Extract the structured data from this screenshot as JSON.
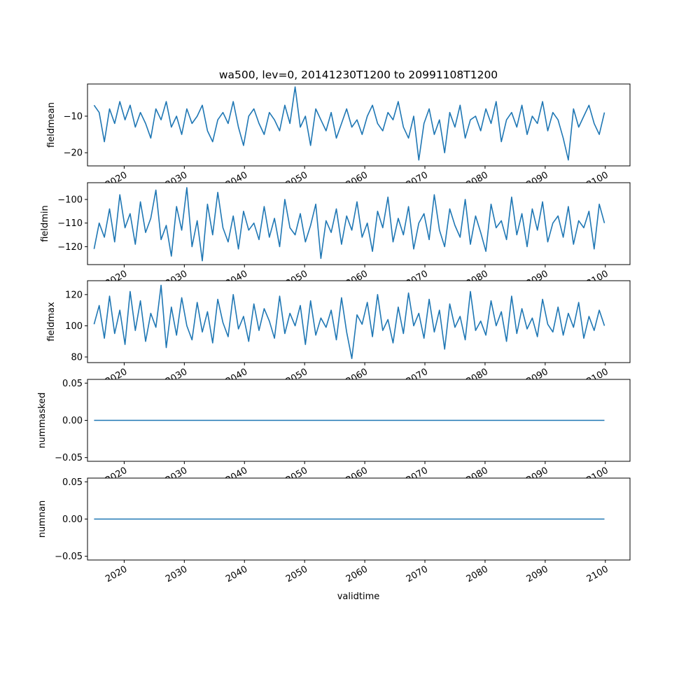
{
  "chart_data": {
    "type": "line",
    "title": "wa500, lev=0, 20141230T1200 to 20991108T1200",
    "xlabel": "validtime",
    "x_range": [
      2013.9,
      2104.1
    ],
    "x_ticks": [
      2020,
      2030,
      2040,
      2050,
      2060,
      2070,
      2080,
      2090,
      2100
    ],
    "x_tick_labels": [
      "2020",
      "2030",
      "2040",
      "2050",
      "2060",
      "2070",
      "2080",
      "2090",
      "2100"
    ],
    "time_start": 2014.99,
    "time_end": 2099.85,
    "line_color": "#1f77b4",
    "grid": false,
    "panels": [
      {
        "ylabel": "fieldmean",
        "ylim": [
          -23.6,
          -1.2
        ],
        "yticks": [
          -10,
          -20
        ],
        "ytick_labels": [
          "−10",
          "−20"
        ],
        "values": [
          -7,
          -9,
          -17,
          -8,
          -12,
          -6,
          -11,
          -7,
          -13,
          -9,
          -12,
          -16,
          -8,
          -11,
          -6,
          -13,
          -10,
          -15,
          -8,
          -12,
          -10,
          -7,
          -14,
          -17,
          -11,
          -9,
          -12,
          -6,
          -13,
          -18,
          -10,
          -8,
          -12,
          -15,
          -9,
          -11,
          -14,
          -7,
          -12,
          -2,
          -13,
          -10,
          -18,
          -8,
          -11,
          -14,
          -9,
          -16,
          -12,
          -8,
          -13,
          -11,
          -15,
          -10,
          -7,
          -12,
          -14,
          -9,
          -11,
          -6,
          -13,
          -16,
          -10,
          -22,
          -12,
          -8,
          -15,
          -11,
          -20,
          -9,
          -13,
          -7,
          -16,
          -11,
          -10,
          -14,
          -8,
          -12,
          -6,
          -17,
          -11,
          -9,
          -13,
          -7,
          -15,
          -10,
          -12,
          -6,
          -14,
          -9,
          -11,
          -16,
          -22,
          -8,
          -13,
          -10,
          -7,
          -12,
          -15,
          -9
        ]
      },
      {
        "ylabel": "fieldmin",
        "ylim": [
          -127.6,
          -92.9
        ],
        "yticks": [
          -100,
          -110,
          -120
        ],
        "ytick_labels": [
          "−100",
          "−110",
          "−120"
        ],
        "values": [
          -121,
          -110,
          -116,
          -104,
          -118,
          -98,
          -112,
          -106,
          -119,
          -101,
          -114,
          -108,
          -96,
          -117,
          -111,
          -124,
          -103,
          -113,
          -95,
          -120,
          -109,
          -126,
          -102,
          -115,
          -97,
          -112,
          -118,
          -107,
          -121,
          -105,
          -113,
          -110,
          -117,
          -103,
          -116,
          -108,
          -120,
          -100,
          -112,
          -115,
          -106,
          -118,
          -111,
          -102,
          -125,
          -109,
          -114,
          -104,
          -119,
          -107,
          -113,
          -101,
          -116,
          -110,
          -122,
          -105,
          -112,
          -99,
          -118,
          -108,
          -115,
          -103,
          -121,
          -110,
          -106,
          -117,
          -98,
          -113,
          -120,
          -104,
          -111,
          -116,
          -100,
          -119,
          -107,
          -114,
          -122,
          -102,
          -112,
          -109,
          -117,
          -99,
          -115,
          -106,
          -120,
          -104,
          -113,
          -101,
          -118,
          -110,
          -107,
          -116,
          -103,
          -119,
          -109,
          -112,
          -105,
          -121,
          -102,
          -110
        ]
      },
      {
        "ylabel": "fieldmax",
        "ylim": [
          76.4,
          128.9
        ],
        "yticks": [
          120,
          100,
          80
        ],
        "ytick_labels": [
          "120",
          "100",
          "80"
        ],
        "values": [
          101,
          113,
          92,
          119,
          95,
          110,
          88,
          122,
          97,
          116,
          90,
          108,
          99,
          126,
          86,
          112,
          94,
          118,
          100,
          91,
          115,
          96,
          109,
          89,
          117,
          102,
          93,
          120,
          98,
          106,
          90,
          114,
          97,
          111,
          103,
          92,
          119,
          95,
          108,
          100,
          113,
          88,
          116,
          94,
          105,
          99,
          110,
          91,
          118,
          96,
          79,
          107,
          101,
          115,
          93,
          120,
          97,
          104,
          89,
          112,
          95,
          121,
          100,
          108,
          92,
          117,
          96,
          110,
          85,
          114,
          99,
          106,
          91,
          122,
          97,
          103,
          94,
          116,
          100,
          109,
          90,
          119,
          95,
          111,
          98,
          105,
          93,
          117,
          101,
          96,
          112,
          94,
          108,
          99,
          115,
          92,
          106,
          97,
          110,
          100
        ]
      },
      {
        "ylabel": "nummasked",
        "ylim": [
          -0.055,
          0.055
        ],
        "yticks": [
          0.05,
          0,
          -0.05
        ],
        "ytick_labels": [
          "0.05",
          "0.00",
          "−0.05"
        ],
        "values": [
          0,
          0
        ]
      },
      {
        "ylabel": "numnan",
        "ylim": [
          -0.055,
          0.055
        ],
        "yticks": [
          0.05,
          0,
          -0.05
        ],
        "ytick_labels": [
          "0.05",
          "0.00",
          "−0.05"
        ],
        "values": [
          0,
          0
        ]
      }
    ]
  }
}
